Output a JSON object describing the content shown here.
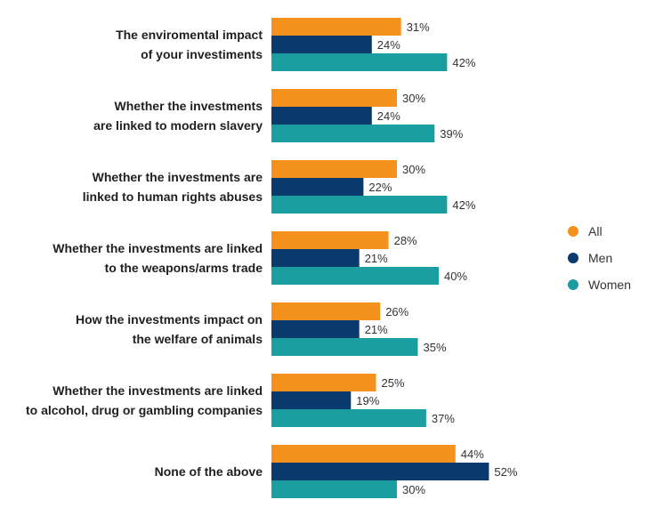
{
  "chart_data": {
    "type": "bar",
    "orientation": "horizontal",
    "categories": [
      [
        "The enviromental impact",
        "of your investiments"
      ],
      [
        "Whether the investments",
        "are linked to modern slavery"
      ],
      [
        "Whether the investments are",
        "linked to human rights abuses"
      ],
      [
        "Whether the investments are linked",
        "to the weapons/arms trade"
      ],
      [
        "How the investments impact on",
        "the welfare of animals"
      ],
      [
        "Whether the investments are linked",
        "to alcohol, drug or gambling companies"
      ],
      [
        "None of the above"
      ]
    ],
    "series": [
      {
        "name": "All",
        "color": "#f5921e",
        "values": [
          31,
          30,
          30,
          28,
          26,
          25,
          44
        ]
      },
      {
        "name": "Men",
        "color": "#0b3a6e",
        "values": [
          24,
          24,
          22,
          21,
          21,
          19,
          52
        ]
      },
      {
        "name": "Women",
        "color": "#1a9ea0",
        "values": [
          42,
          39,
          42,
          40,
          35,
          37,
          30
        ]
      }
    ],
    "value_suffix": "%",
    "xlim": [
      0,
      100
    ],
    "legend_position": "right",
    "grid": false
  }
}
